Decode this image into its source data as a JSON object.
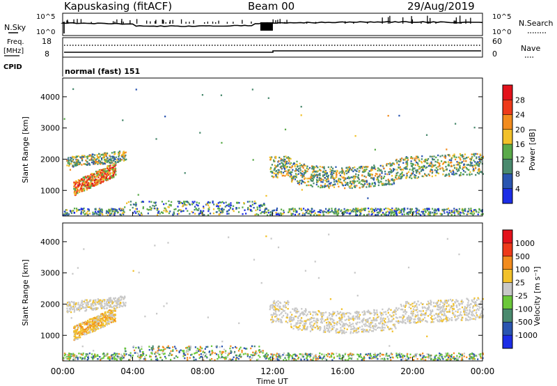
{
  "header": {
    "station": "Kapuskasing (fitACF)",
    "beam": "Beam 00",
    "date": "29/Aug/2019"
  },
  "status_panels": {
    "nsky_label": "N.Sky",
    "nsearch_label": "N.Search",
    "nsky_ticks": [
      "10^5",
      "10^0"
    ],
    "nsearch_ticks": [
      "10^5",
      "10^0"
    ],
    "freq_label": "Freq.",
    "freq_unit": "[MHz]",
    "freq_ticks": [
      "18",
      "8"
    ],
    "nave_label": "Nave",
    "nave_ticks": [
      "60",
      "0"
    ],
    "cpid_label": "CPID",
    "cpid_value": "normal (fast) 151"
  },
  "chart_data": [
    {
      "type": "heatmap",
      "panel": "power",
      "ylabel": "Slant Range [km]",
      "y_ticks": [
        1000,
        2000,
        3000,
        4000
      ],
      "ylim": [
        180,
        4600
      ],
      "x_ticks": [
        "00:00",
        "04:00",
        "08:00",
        "12:00",
        "16:00",
        "20:00",
        "00:00"
      ],
      "xlim_hours": [
        0,
        24
      ],
      "colorbar": {
        "label": "Power [dB]",
        "ticks": [
          "4",
          "8",
          "12",
          "16",
          "20",
          "24",
          "28"
        ],
        "colors": [
          "#1c2de6",
          "#2a55b0",
          "#4a8a6e",
          "#5aaa4a",
          "#f2c12a",
          "#f28c1e",
          "#ee3a1a",
          "#e3121b"
        ]
      },
      "scatter_regions": [
        {
          "name": "early-low",
          "t": [
            0.6,
            3.0
          ],
          "range": [
            800,
            1700
          ],
          "tilt": 0.35,
          "level": "high"
        },
        {
          "name": "early-upper",
          "t": [
            0.3,
            3.6
          ],
          "range": [
            1650,
            2400
          ],
          "level": "mid"
        },
        {
          "name": "near-range",
          "t": [
            0,
            24
          ],
          "range": [
            180,
            600
          ],
          "level": "low"
        },
        {
          "name": "night-band",
          "t": [
            11.8,
            24
          ],
          "range": [
            1300,
            2300
          ],
          "level": "mid"
        }
      ]
    },
    {
      "type": "heatmap",
      "panel": "velocity",
      "ylabel": "Slant Range [km]",
      "y_ticks": [
        1000,
        2000,
        3000,
        4000
      ],
      "ylim": [
        180,
        4600
      ],
      "x_ticks": [
        "00:00",
        "04:00",
        "08:00",
        "12:00",
        "16:00",
        "20:00",
        "00:00"
      ],
      "xlabel": "Time UT",
      "colorbar": {
        "label": "Velocity [m s⁻¹]",
        "ticks": [
          "1000",
          "500",
          "100",
          "25",
          "-25",
          "-100",
          "-500",
          "-1000"
        ],
        "colors": [
          "#1c2de6",
          "#2a55b0",
          "#4a8a6e",
          "#6bc83a",
          "#c8c8c8",
          "#f2c12a",
          "#f28c1e",
          "#ee3a1a",
          "#e3121b"
        ]
      }
    }
  ]
}
